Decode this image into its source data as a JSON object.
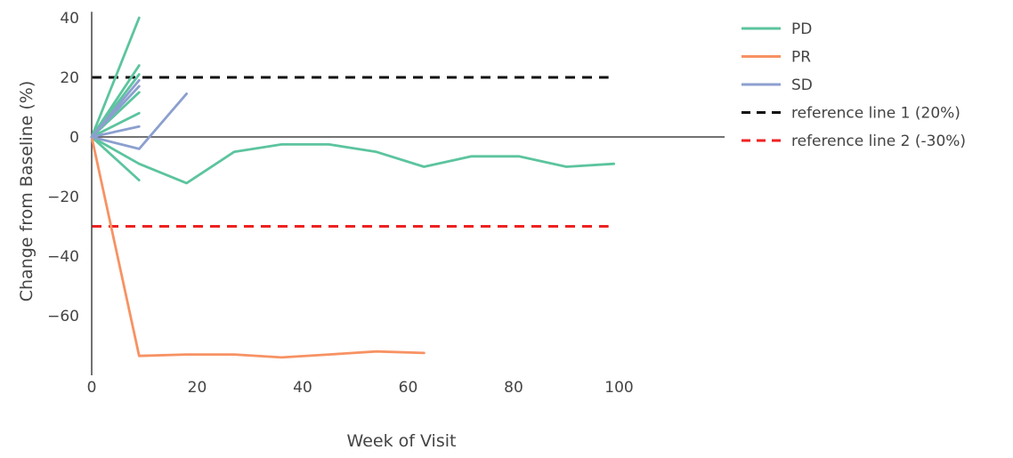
{
  "chart_data": {
    "type": "line",
    "xlabel": "Week of Visit",
    "ylabel": "Change from Baseline (%)",
    "xlim": [
      0,
      120
    ],
    "ylim": [
      -80,
      42
    ],
    "x_ticks": [
      0,
      20,
      40,
      60,
      80,
      100
    ],
    "y_ticks": [
      40,
      20,
      0,
      -20,
      -40,
      -60
    ],
    "grid": false,
    "legend_position": "top-right",
    "groups": [
      {
        "name": "PD",
        "color": "#5cc49e"
      },
      {
        "name": "PR",
        "color": "#f79263"
      },
      {
        "name": "SD",
        "color": "#8c9fcf"
      }
    ],
    "series": [
      {
        "group": "PD",
        "x": [
          0,
          9
        ],
        "y": [
          0,
          40
        ]
      },
      {
        "group": "PD",
        "x": [
          0,
          9
        ],
        "y": [
          0,
          24
        ]
      },
      {
        "group": "PD",
        "x": [
          0,
          9
        ],
        "y": [
          0,
          21
        ]
      },
      {
        "group": "PD",
        "x": [
          0,
          9
        ],
        "y": [
          0,
          15
        ]
      },
      {
        "group": "PD",
        "x": [
          0,
          9
        ],
        "y": [
          0,
          8
        ]
      },
      {
        "group": "PD",
        "x": [
          0,
          9
        ],
        "y": [
          0,
          -14.5
        ]
      },
      {
        "group": "PD",
        "x": [
          0,
          9,
          18,
          27,
          36,
          45,
          54,
          63,
          72,
          81,
          90,
          99
        ],
        "y": [
          0,
          -9,
          -15.5,
          -5,
          -2.5,
          -2.5,
          -5,
          -10,
          -6.5,
          -6.5,
          -10,
          -9
        ]
      },
      {
        "group": "PR",
        "x": [
          0,
          9,
          18,
          27,
          36,
          45,
          54,
          63
        ],
        "y": [
          0,
          -73.5,
          -73,
          -73,
          -74,
          -73,
          -72,
          -72.5
        ]
      },
      {
        "group": "SD",
        "x": [
          0,
          9
        ],
        "y": [
          0,
          19
        ]
      },
      {
        "group": "SD",
        "x": [
          0,
          9
        ],
        "y": [
          0,
          17
        ]
      },
      {
        "group": "SD",
        "x": [
          0,
          9
        ],
        "y": [
          0,
          3.5
        ]
      },
      {
        "group": "SD",
        "x": [
          0,
          9,
          18
        ],
        "y": [
          0,
          -4,
          14.5
        ]
      }
    ],
    "reference_lines": [
      {
        "name": "reference line 1 (20%)",
        "y": 20,
        "x_range": [
          0,
          98
        ],
        "color": "#111111",
        "style": "dashed"
      },
      {
        "name": "reference line 2 (-30%)",
        "y": -30,
        "x_range": [
          0,
          98
        ],
        "color": "#ee2222",
        "style": "dashed"
      }
    ],
    "legend": [
      {
        "label": "PD",
        "color": "#5cc49e",
        "style": "solid"
      },
      {
        "label": "PR",
        "color": "#f79263",
        "style": "solid"
      },
      {
        "label": "SD",
        "color": "#8c9fcf",
        "style": "solid"
      },
      {
        "label": "reference line 1 (20%)",
        "color": "#111111",
        "style": "dashed"
      },
      {
        "label": "reference line 2 (-30%)",
        "color": "#ee2222",
        "style": "dashed"
      }
    ]
  }
}
